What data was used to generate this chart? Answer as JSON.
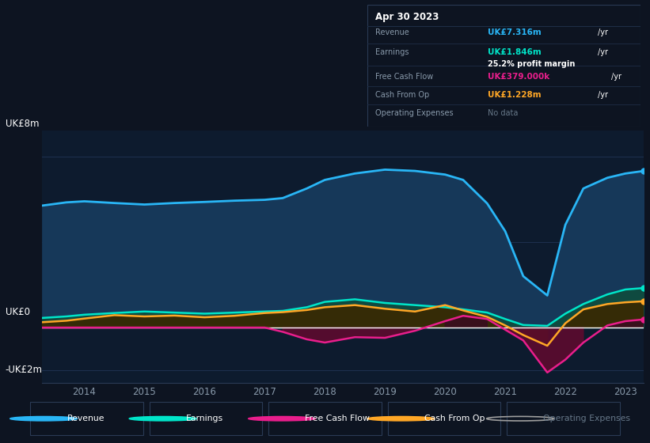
{
  "bg_color": "#0d1421",
  "plot_bg_color": "#0d1b2e",
  "info_bg_color": "#080e1a",
  "ylabel_top": "UK£8m",
  "ylabel_zero": "UK£0",
  "ylabel_bot": "-UK£2m",
  "ylim": [
    -2.6,
    9.2
  ],
  "years": [
    2013.3,
    2013.7,
    2014.0,
    2014.5,
    2015.0,
    2015.5,
    2016.0,
    2016.5,
    2017.0,
    2017.3,
    2017.7,
    2018.0,
    2018.5,
    2019.0,
    2019.5,
    2020.0,
    2020.3,
    2020.7,
    2021.0,
    2021.3,
    2021.7,
    2022.0,
    2022.3,
    2022.7,
    2023.0,
    2023.3
  ],
  "revenue": [
    5.7,
    5.85,
    5.9,
    5.82,
    5.75,
    5.82,
    5.87,
    5.93,
    5.97,
    6.05,
    6.5,
    6.9,
    7.2,
    7.38,
    7.32,
    7.15,
    6.9,
    5.8,
    4.5,
    2.4,
    1.5,
    4.8,
    6.5,
    7.0,
    7.2,
    7.316
  ],
  "earnings": [
    0.45,
    0.52,
    0.6,
    0.68,
    0.75,
    0.7,
    0.65,
    0.7,
    0.75,
    0.78,
    0.95,
    1.2,
    1.32,
    1.15,
    1.05,
    0.95,
    0.85,
    0.7,
    0.4,
    0.12,
    0.08,
    0.65,
    1.1,
    1.55,
    1.78,
    1.846
  ],
  "free_cash_flow": [
    0.0,
    0.0,
    0.0,
    0.0,
    0.0,
    0.0,
    0.0,
    0.0,
    0.0,
    -0.2,
    -0.55,
    -0.7,
    -0.45,
    -0.48,
    -0.15,
    0.3,
    0.55,
    0.4,
    -0.1,
    -0.6,
    -2.1,
    -1.5,
    -0.7,
    0.1,
    0.3,
    0.379
  ],
  "cash_from_op": [
    0.25,
    0.32,
    0.42,
    0.58,
    0.52,
    0.56,
    0.48,
    0.55,
    0.68,
    0.72,
    0.82,
    0.95,
    1.05,
    0.88,
    0.75,
    1.05,
    0.8,
    0.5,
    0.1,
    -0.35,
    -0.85,
    0.2,
    0.85,
    1.1,
    1.18,
    1.228
  ],
  "revenue_color": "#29b6f6",
  "earnings_color": "#00e5c9",
  "fcf_color": "#e91e8c",
  "cfop_color": "#ffa726",
  "opex_color": "#9e9e9e",
  "revenue_fill": "#163859",
  "earnings_fill": "#0f4a40",
  "fcf_fill_neg": "#5c0b2e",
  "fcf_fill_pos": "#3a0c20",
  "cfop_fill_neg": "#4a2500",
  "cfop_fill_pos": "#3a2800",
  "xticks": [
    2014,
    2015,
    2016,
    2017,
    2018,
    2019,
    2020,
    2021,
    2022,
    2023
  ],
  "info_box": {
    "date": "Apr 30 2023",
    "revenue_val": "UK£7.316m",
    "earnings_val": "UK£1.846m",
    "profit_margin": "25.2%",
    "fcf_val": "UK£379.000k",
    "cfop_val": "UK£1.228m",
    "opex_val": "No data"
  },
  "legend_items": [
    {
      "label": "Revenue",
      "color": "#29b6f6",
      "filled": true
    },
    {
      "label": "Earnings",
      "color": "#00e5c9",
      "filled": true
    },
    {
      "label": "Free Cash Flow",
      "color": "#e91e8c",
      "filled": true
    },
    {
      "label": "Cash From Op",
      "color": "#ffa726",
      "filled": true
    },
    {
      "label": "Operating Expenses",
      "color": "#9e9e9e",
      "filled": false
    }
  ]
}
